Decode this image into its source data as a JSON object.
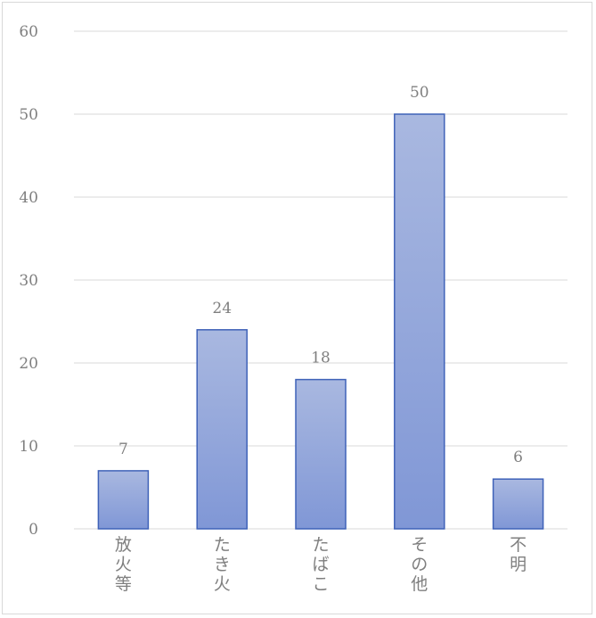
{
  "chart_data": {
    "type": "bar",
    "title": "",
    "xlabel": "",
    "ylabel": "",
    "categories": [
      "放火等",
      "たき火",
      "たばこ",
      "その他",
      "不明"
    ],
    "values": [
      7,
      24,
      18,
      50,
      6
    ],
    "ylim": [
      0,
      60
    ],
    "yticks": [
      0,
      10,
      20,
      30,
      40,
      50,
      60
    ],
    "grid": true,
    "legend": "none",
    "data_labels": true,
    "colors": {
      "bar_top": "#a9b8e0",
      "bar_bottom": "#8097d6",
      "bar_border": "#3f62b8",
      "text": "#7f7f7f",
      "grid": "#d9d9d9"
    }
  }
}
